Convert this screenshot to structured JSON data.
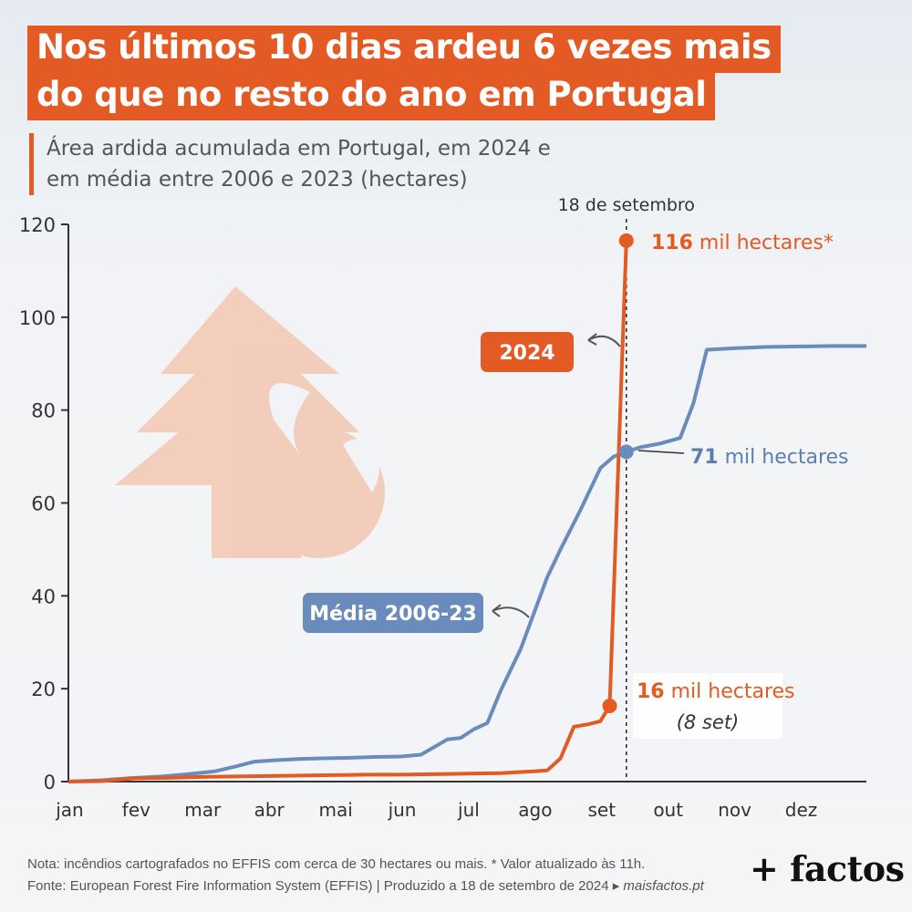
{
  "title": {
    "line1": "Nos últimos 10 dias ardeu 6 vezes mais",
    "line2": "do que no resto do ano em Portugal"
  },
  "subtitle": {
    "line1": "Área ardida acumulada em Portugal, em 2024 e",
    "line2": "em média entre 2006 e 2023 (hectares)"
  },
  "colors": {
    "accent": "#e45a24",
    "series_2024": "#e45a24",
    "series_media": "#6a8cbc",
    "axis": "#333333"
  },
  "icon": "tree-fire-icon",
  "chart_data": {
    "type": "line",
    "ylim": [
      0,
      120
    ],
    "y_ticks": [
      "0",
      "20",
      "40",
      "60",
      "80",
      "100",
      "120"
    ],
    "x_ticks": [
      "jan",
      "fev",
      "mar",
      "abr",
      "mai",
      "jun",
      "jul",
      "ago",
      "set",
      "out",
      "nov",
      "dez"
    ],
    "xlim": [
      0,
      12
    ],
    "grid": false,
    "series": [
      {
        "name": "Média 2006-23",
        "color": "#6a8cbc",
        "x": [
          0,
          0.5,
          0.9,
          1.4,
          1.8,
          2.2,
          2.5,
          2.8,
          3.1,
          3.5,
          3.8,
          4.2,
          4.6,
          5.0,
          5.3,
          5.5,
          5.7,
          5.9,
          6.1,
          6.3,
          6.5,
          6.8,
          7.2,
          7.4,
          7.7,
          8.0,
          8.2,
          8.39,
          8.6,
          8.9,
          9.2,
          9.4,
          9.6,
          10.0,
          10.5,
          11.0,
          11.5,
          12.0
        ],
        "y": [
          0,
          0.3,
          0.7,
          1.1,
          1.6,
          2.2,
          3.2,
          4.3,
          4.6,
          4.9,
          5.0,
          5.1,
          5.3,
          5.4,
          5.8,
          7.4,
          9.1,
          9.4,
          11.3,
          12.6,
          19.6,
          28.5,
          44.0,
          50.0,
          58.5,
          67.5,
          70.0,
          71.0,
          72.0,
          72.8,
          74.0,
          81.5,
          93.0,
          93.3,
          93.6,
          93.7,
          93.8,
          93.8
        ],
        "label_start": "Média 2006-23"
      },
      {
        "name": "2024",
        "color": "#e45a24",
        "x": [
          0,
          0.5,
          0.8,
          1.0,
          1.5,
          2.0,
          2.5,
          3.0,
          3.5,
          4.0,
          4.5,
          5.0,
          5.5,
          6.0,
          6.5,
          7.0,
          7.2,
          7.4,
          7.6,
          7.8,
          8.0,
          8.14,
          8.39
        ],
        "y": [
          0,
          0.1,
          0.5,
          0.7,
          0.8,
          1.0,
          1.1,
          1.2,
          1.3,
          1.4,
          1.5,
          1.5,
          1.6,
          1.7,
          1.8,
          2.2,
          2.4,
          5.0,
          11.8,
          12.3,
          13.0,
          16.3,
          116.5
        ],
        "label_start": "2024"
      }
    ],
    "reference_line": {
      "x": 8.39,
      "label": "18 de setembro"
    },
    "annotations": {
      "a2024_final_value": "116",
      "a2024_final_unit": " mil hectares*",
      "media_value": "71",
      "media_unit": " mil hectares",
      "a2024_sep8_value": "16",
      "a2024_sep8_unit": " mil hectares",
      "a2024_sep8_date": "(8 set)"
    },
    "points": [
      {
        "series": "2024",
        "x": 8.39,
        "y": 116.5
      },
      {
        "series": "Média 2006-23",
        "x": 8.39,
        "y": 71.0
      },
      {
        "series": "2024",
        "x": 8.14,
        "y": 16.3
      }
    ]
  },
  "footer": {
    "note": "Nota: incêndios cartografados no EFFIS com cerca de 30 hectares ou mais. * Valor atualizado às 11h.",
    "source": "Fonte: European Forest Fire Information System (EFFIS)  |  Produzido a 18 de setembro de 2024 ▸ ",
    "site": "maisfactos.pt",
    "logo": "+ factos"
  }
}
